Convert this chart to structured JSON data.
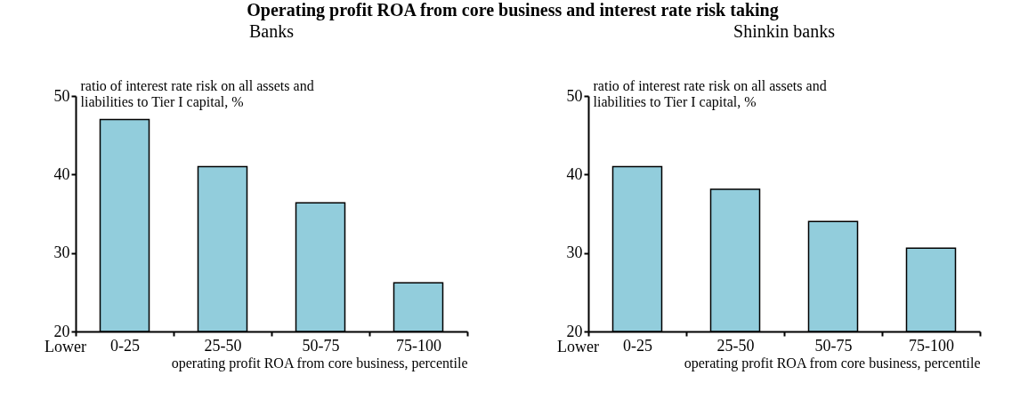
{
  "chart_data": [
    {
      "type": "bar",
      "title": "Operating profit ROA from core business and interest rate risk taking",
      "subtitle": "Banks",
      "ylabel": "ratio of interest rate risk on all assets and liabilities to Tier I capital, %",
      "xlabel": "operating profit ROA from core business, percentile",
      "categories": [
        "0-25",
        "25-50",
        "50-75",
        "75-100"
      ],
      "values": [
        47,
        41,
        36.4,
        26.2
      ],
      "color": "#92cddc",
      "ylim": [
        20,
        50
      ],
      "yticks": [
        20,
        30,
        40,
        50
      ],
      "grid": false,
      "annotations": [
        "Lower"
      ]
    },
    {
      "type": "bar",
      "subtitle": "Shinkin banks",
      "ylabel": "ratio of interest rate risk on all assets and liabilities to Tier I capital, %",
      "xlabel": "operating profit ROA from core business, percentile",
      "categories": [
        "0-25",
        "25-50",
        "50-75",
        "75-100"
      ],
      "values": [
        41,
        38.1,
        34,
        30.6
      ],
      "color": "#92cddc",
      "ylim": [
        20,
        50
      ],
      "yticks": [
        20,
        30,
        40,
        50
      ],
      "grid": false,
      "annotations": [
        "Lower"
      ]
    }
  ]
}
